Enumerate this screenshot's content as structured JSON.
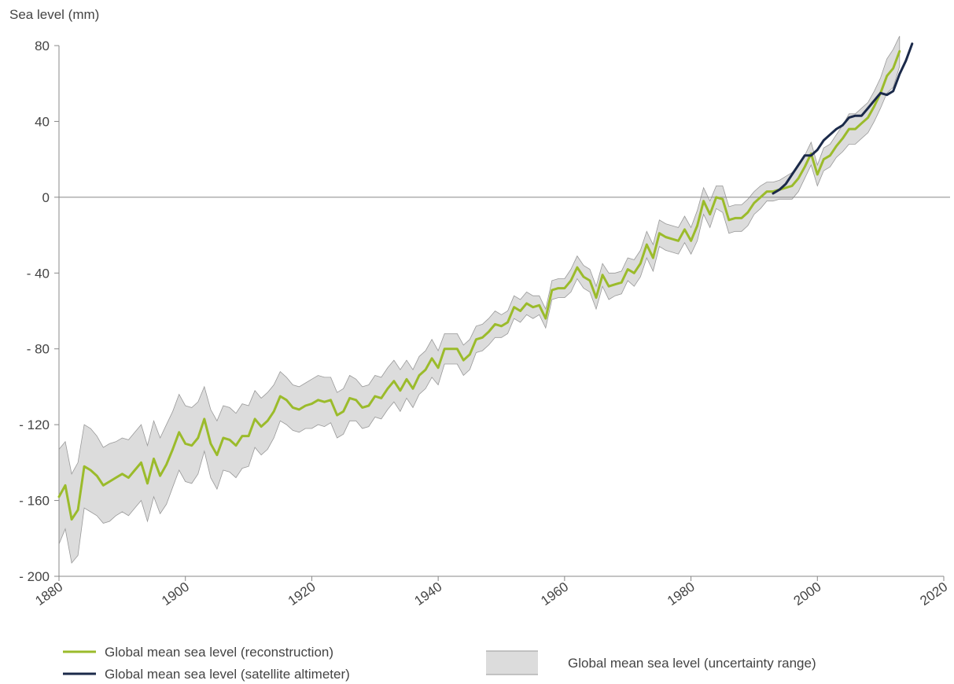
{
  "chart_data": {
    "type": "line",
    "title": "",
    "ylabel": "Sea level (mm)",
    "xlabel": "",
    "xlim": [
      1880,
      2020
    ],
    "ylim": [
      -200,
      80
    ],
    "x_ticks": [
      "1880",
      "1900",
      "1920",
      "1940",
      "1960",
      "1980",
      "2000",
      "2020"
    ],
    "y_ticks": [
      "80",
      "40",
      "0",
      "- 40",
      "- 80",
      "- 120",
      "- 160",
      "- 200"
    ],
    "grid": false,
    "zero_line": true,
    "legend_position": "bottom",
    "colors": {
      "reconstruction": "#9bbb2b",
      "satellite": "#1b2a4a",
      "uncertainty_fill": "#dcdcdc",
      "uncertainty_edge": "#999999",
      "axis": "#888888"
    },
    "series": [
      {
        "name": "Global mean sea level (reconstruction)",
        "x": [
          1880,
          1881,
          1882,
          1883,
          1884,
          1885,
          1886,
          1887,
          1888,
          1889,
          1890,
          1891,
          1892,
          1893,
          1894,
          1895,
          1896,
          1897,
          1898,
          1899,
          1900,
          1901,
          1902,
          1903,
          1904,
          1905,
          1906,
          1907,
          1908,
          1909,
          1910,
          1911,
          1912,
          1913,
          1914,
          1915,
          1916,
          1917,
          1918,
          1919,
          1920,
          1921,
          1922,
          1923,
          1924,
          1925,
          1926,
          1927,
          1928,
          1929,
          1930,
          1931,
          1932,
          1933,
          1934,
          1935,
          1936,
          1937,
          1938,
          1939,
          1940,
          1941,
          1942,
          1943,
          1944,
          1945,
          1946,
          1947,
          1948,
          1949,
          1950,
          1951,
          1952,
          1953,
          1954,
          1955,
          1956,
          1957,
          1958,
          1959,
          1960,
          1961,
          1962,
          1963,
          1964,
          1965,
          1966,
          1967,
          1968,
          1969,
          1970,
          1971,
          1972,
          1973,
          1974,
          1975,
          1976,
          1977,
          1978,
          1979,
          1980,
          1981,
          1982,
          1983,
          1984,
          1985,
          1986,
          1987,
          1988,
          1989,
          1990,
          1991,
          1992,
          1993,
          1994,
          1995,
          1996,
          1997,
          1998,
          1999,
          2000,
          2001,
          2002,
          2003,
          2004,
          2005,
          2006,
          2007,
          2008,
          2009,
          2010,
          2011,
          2012,
          2013
        ],
        "values": [
          -158,
          -152,
          -170,
          -165,
          -142,
          -144,
          -147,
          -152,
          -150,
          -148,
          -146,
          -148,
          -144,
          -140,
          -151,
          -138,
          -147,
          -141,
          -133,
          -124,
          -130,
          -131,
          -127,
          -117,
          -130,
          -136,
          -127,
          -128,
          -131,
          -126,
          -126,
          -117,
          -121,
          -118,
          -113,
          -105,
          -107,
          -111,
          -112,
          -110,
          -109,
          -107,
          -108,
          -107,
          -115,
          -113,
          -106,
          -107,
          -111,
          -110,
          -105,
          -106,
          -101,
          -97,
          -102,
          -96,
          -101,
          -94,
          -91,
          -85,
          -90,
          -80,
          -80,
          -80,
          -86,
          -83,
          -75,
          -74,
          -71,
          -67,
          -68,
          -66,
          -58,
          -60,
          -56,
          -58,
          -57,
          -64,
          -49,
          -48,
          -48,
          -44,
          -37,
          -42,
          -44,
          -53,
          -41,
          -47,
          -46,
          -45,
          -38,
          -40,
          -35,
          -25,
          -32,
          -19,
          -21,
          -22,
          -23,
          -17,
          -23,
          -15,
          -2,
          -9,
          0,
          -1,
          -12,
          -11,
          -11,
          -8,
          -3,
          0,
          3,
          3,
          4,
          5,
          6,
          10,
          16,
          23,
          12,
          20,
          22,
          27,
          31,
          36,
          36,
          39,
          42,
          48,
          55,
          64,
          68,
          77
        ]
      },
      {
        "name": "Global mean sea level (satellite altimeter)",
        "x": [
          1993,
          1994,
          1995,
          1996,
          1997,
          1998,
          1999,
          2000,
          2001,
          2002,
          2003,
          2004,
          2005,
          2006,
          2007,
          2008,
          2009,
          2010,
          2011,
          2012,
          2013,
          2014,
          2015
        ],
        "values": [
          2,
          4,
          7,
          12,
          17,
          22,
          22,
          25,
          30,
          33,
          36,
          38,
          42,
          43,
          43,
          47,
          51,
          55,
          54,
          56,
          65,
          72,
          81
        ]
      },
      {
        "name": "Global mean sea level (uncertainty range)",
        "x": [
          1880,
          1881,
          1882,
          1883,
          1884,
          1885,
          1886,
          1887,
          1888,
          1889,
          1890,
          1891,
          1892,
          1893,
          1894,
          1895,
          1896,
          1897,
          1898,
          1899,
          1900,
          1901,
          1902,
          1903,
          1904,
          1905,
          1906,
          1907,
          1908,
          1909,
          1910,
          1911,
          1912,
          1913,
          1914,
          1915,
          1916,
          1917,
          1918,
          1919,
          1920,
          1921,
          1922,
          1923,
          1924,
          1925,
          1926,
          1927,
          1928,
          1929,
          1930,
          1931,
          1932,
          1933,
          1934,
          1935,
          1936,
          1937,
          1938,
          1939,
          1940,
          1941,
          1942,
          1943,
          1944,
          1945,
          1946,
          1947,
          1948,
          1949,
          1950,
          1951,
          1952,
          1953,
          1954,
          1955,
          1956,
          1957,
          1958,
          1959,
          1960,
          1961,
          1962,
          1963,
          1964,
          1965,
          1966,
          1967,
          1968,
          1969,
          1970,
          1971,
          1972,
          1973,
          1974,
          1975,
          1976,
          1977,
          1978,
          1979,
          1980,
          1981,
          1982,
          1983,
          1984,
          1985,
          1986,
          1987,
          1988,
          1989,
          1990,
          1991,
          1992,
          1993,
          1994,
          1995,
          1996,
          1997,
          1998,
          1999,
          2000,
          2001,
          2002,
          2003,
          2004,
          2005,
          2006,
          2007,
          2008,
          2009,
          2010,
          2011,
          2012,
          2013
        ],
        "upper": [
          -133,
          -129,
          -146,
          -140,
          -120,
          -122,
          -126,
          -132,
          -130,
          -129,
          -127,
          -128,
          -124,
          -120,
          -131,
          -118,
          -127,
          -120,
          -113,
          -104,
          -110,
          -111,
          -108,
          -100,
          -112,
          -118,
          -110,
          -111,
          -114,
          -109,
          -110,
          -102,
          -106,
          -103,
          -99,
          -92,
          -95,
          -99,
          -100,
          -98,
          -96,
          -94,
          -95,
          -95,
          -103,
          -101,
          -94,
          -96,
          -100,
          -99,
          -94,
          -95,
          -90,
          -86,
          -91,
          -86,
          -91,
          -84,
          -81,
          -75,
          -81,
          -72,
          -72,
          -72,
          -78,
          -75,
          -68,
          -67,
          -64,
          -60,
          -62,
          -60,
          -52,
          -54,
          -50,
          -52,
          -52,
          -59,
          -44,
          -43,
          -43,
          -38,
          -31,
          -36,
          -38,
          -47,
          -35,
          -40,
          -40,
          -39,
          -32,
          -33,
          -28,
          -18,
          -25,
          -12,
          -14,
          -15,
          -16,
          -10,
          -16,
          -7,
          5,
          -2,
          6,
          6,
          -5,
          -4,
          -4,
          -1,
          3,
          6,
          8,
          8,
          9,
          11,
          13,
          17,
          22,
          29,
          17,
          26,
          28,
          33,
          38,
          44,
          44,
          47,
          50,
          56,
          63,
          73,
          78,
          85
        ],
        "lower": [
          -183,
          -175,
          -193,
          -189,
          -164,
          -166,
          -168,
          -172,
          -171,
          -168,
          -166,
          -168,
          -164,
          -160,
          -171,
          -158,
          -167,
          -162,
          -153,
          -144,
          -150,
          -151,
          -146,
          -134,
          -148,
          -154,
          -144,
          -145,
          -148,
          -143,
          -142,
          -132,
          -136,
          -133,
          -127,
          -118,
          -120,
          -123,
          -124,
          -122,
          -122,
          -120,
          -121,
          -119,
          -127,
          -125,
          -118,
          -118,
          -122,
          -121,
          -116,
          -117,
          -112,
          -108,
          -113,
          -106,
          -111,
          -104,
          -101,
          -95,
          -99,
          -88,
          -88,
          -88,
          -94,
          -91,
          -82,
          -81,
          -78,
          -74,
          -74,
          -72,
          -64,
          -66,
          -62,
          -64,
          -62,
          -69,
          -54,
          -53,
          -53,
          -50,
          -43,
          -48,
          -50,
          -59,
          -47,
          -54,
          -52,
          -51,
          -44,
          -47,
          -42,
          -32,
          -39,
          -26,
          -28,
          -29,
          -30,
          -24,
          -30,
          -23,
          -9,
          -16,
          -6,
          -8,
          -19,
          -18,
          -18,
          -15,
          -9,
          -6,
          -2,
          -2,
          -1,
          -1,
          -1,
          3,
          10,
          17,
          6,
          14,
          16,
          21,
          24,
          28,
          28,
          31,
          34,
          40,
          47,
          55,
          58,
          69
        ]
      }
    ],
    "legend": [
      {
        "label": "Global mean sea level (reconstruction)",
        "kind": "line",
        "color_key": "reconstruction"
      },
      {
        "label": "Global mean sea level (satellite altimeter)",
        "kind": "line",
        "color_key": "satellite"
      },
      {
        "label": "Global mean sea level (uncertainty range)",
        "kind": "band",
        "color_key": "uncertainty_fill"
      }
    ]
  }
}
